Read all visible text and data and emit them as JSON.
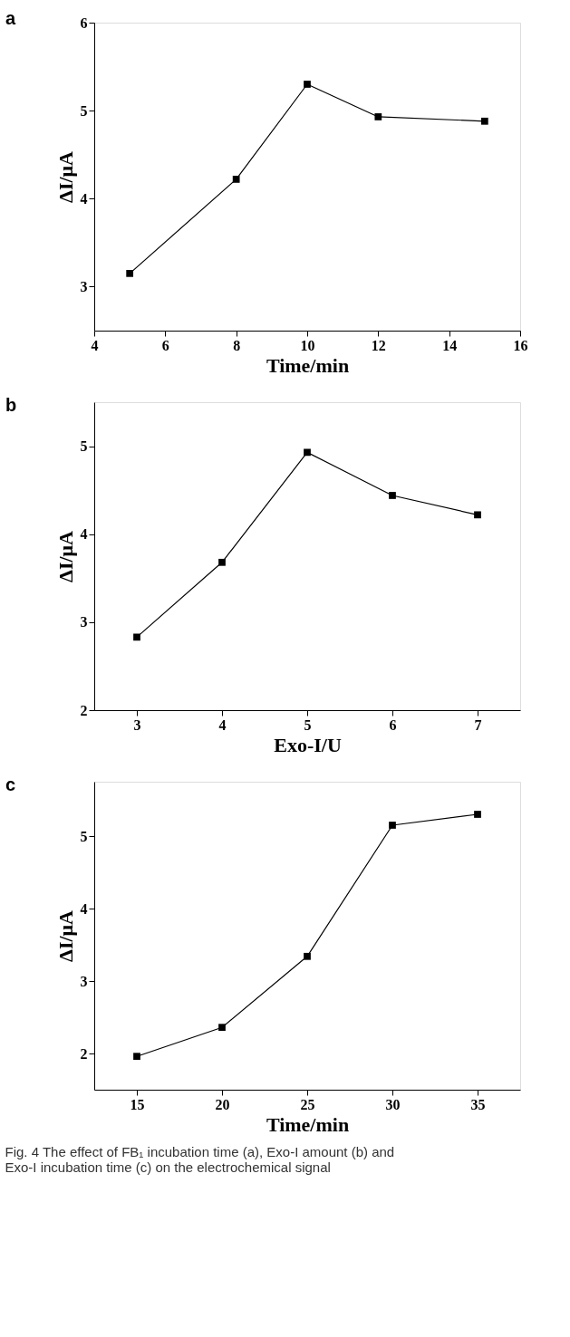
{
  "chart_data": [
    {
      "type": "line",
      "title": "a",
      "xlabel": "Time/min",
      "ylabel": "ΔI/μA",
      "x": [
        5,
        8,
        10,
        12,
        15
      ],
      "values": [
        3.15,
        4.22,
        5.3,
        4.93,
        4.88
      ],
      "color": "#000000",
      "xlim": [
        4,
        16
      ],
      "xticks": [
        4,
        6,
        8,
        10,
        12,
        14,
        16
      ],
      "ylim": [
        2.5,
        6
      ],
      "yticks": [
        3,
        4,
        5,
        6
      ],
      "marker": "square",
      "line_style": "solid",
      "grid": false
    },
    {
      "type": "line",
      "title": "b",
      "xlabel": "Exo-I/U",
      "ylabel": "ΔI/μA",
      "x": [
        3,
        4,
        5,
        6,
        7
      ],
      "values": [
        2.83,
        3.68,
        4.93,
        4.44,
        4.22
      ],
      "color": "#000000",
      "xlim": [
        2.5,
        7.5
      ],
      "xticks": [
        3,
        4,
        5,
        6,
        7
      ],
      "ylim": [
        2,
        5.5
      ],
      "yticks": [
        2,
        3,
        4,
        5
      ],
      "marker": "square",
      "line_style": "solid",
      "grid": false
    },
    {
      "type": "line",
      "title": "c",
      "xlabel": "Time/min",
      "ylabel": "ΔI/μA",
      "x": [
        15,
        20,
        25,
        30,
        35
      ],
      "values": [
        1.96,
        2.36,
        3.34,
        5.15,
        5.3
      ],
      "color": "#000000",
      "xlim": [
        12.5,
        37.5
      ],
      "xticks": [
        15,
        20,
        25,
        30,
        35
      ],
      "ylim": [
        1.5,
        5.75
      ],
      "yticks": [
        2,
        3,
        4,
        5
      ],
      "marker": "square",
      "line_style": "solid",
      "grid": false,
      "annotations": [
        "Fig. 4  The effect of FB₁ incubation time (a), Exo-I amount (b) and Exo-I incubation time (c) on the electrochemical signal"
      ]
    }
  ]
}
